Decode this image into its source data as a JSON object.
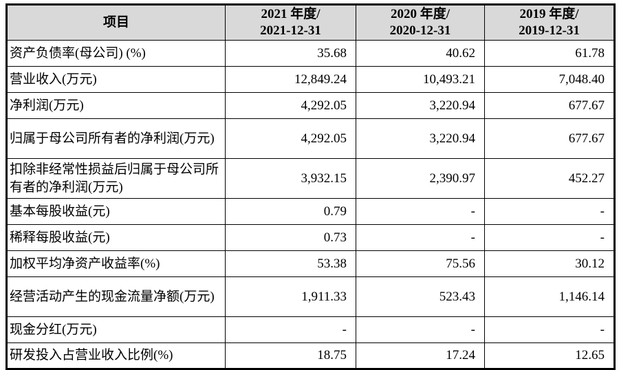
{
  "table": {
    "header": {
      "item_label": "项目",
      "periods": [
        {
          "line1": "2021 年度/",
          "line2": "2021-12-31"
        },
        {
          "line1": "2020 年度/",
          "line2": "2020-12-31"
        },
        {
          "line1": "2019 年度/",
          "line2": "2019-12-31"
        }
      ]
    },
    "rows": [
      {
        "label": "资产负债率(母公司) (%)",
        "values": [
          "35.68",
          "40.62",
          "61.78"
        ]
      },
      {
        "label": "营业收入(万元)",
        "values": [
          "12,849.24",
          "10,493.21",
          "7,048.40"
        ]
      },
      {
        "label": "净利润(万元)",
        "values": [
          "4,292.05",
          "3,220.94",
          "677.67"
        ]
      },
      {
        "label": "归属于母公司所有者的净利润(万元)",
        "values": [
          "4,292.05",
          "3,220.94",
          "677.67"
        ]
      },
      {
        "label": "扣除非经常性损益后归属于母公司所有者的净利润(万元)",
        "values": [
          "3,932.15",
          "2,390.97",
          "452.27"
        ]
      },
      {
        "label": "基本每股收益(元)",
        "values": [
          "0.79",
          "-",
          "-"
        ]
      },
      {
        "label": "稀释每股收益(元)",
        "values": [
          "0.73",
          "-",
          "-"
        ]
      },
      {
        "label": "加权平均净资产收益率(%)",
        "values": [
          "53.38",
          "75.56",
          "30.12"
        ]
      },
      {
        "label": "经营活动产生的现金流量净额(万元)",
        "values": [
          "1,911.33",
          "523.43",
          "1,146.14"
        ]
      },
      {
        "label": "现金分红(万元)",
        "values": [
          "-",
          "-",
          "-"
        ]
      },
      {
        "label": "研发投入占营业收入比例(%)",
        "values": [
          "18.75",
          "17.24",
          "12.65"
        ]
      }
    ],
    "colors": {
      "header_bg": "#d9d9d9",
      "border": "#000000",
      "text": "#000000"
    }
  }
}
